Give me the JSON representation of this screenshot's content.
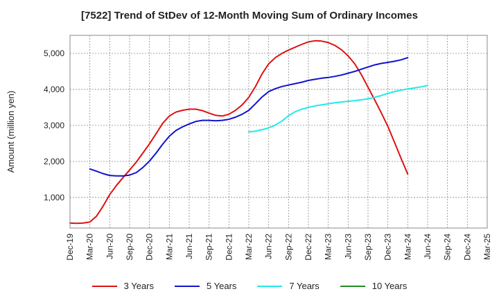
{
  "chart_data": {
    "type": "line",
    "title": "[7522]  Trend of StDev of 12-Month Moving Sum of Ordinary Incomes",
    "xlabel": "",
    "ylabel": "Amount (million yen)",
    "ylim": [
      150,
      5500
    ],
    "yticks": [
      1000,
      2000,
      3000,
      4000,
      5000
    ],
    "ytick_labels": [
      "1,000",
      "2,000",
      "3,000",
      "4,000",
      "5,000"
    ],
    "x_tick_labels": [
      "Dec-19",
      "Mar-20",
      "Jun-20",
      "Sep-20",
      "Dec-20",
      "Mar-21",
      "Jun-21",
      "Sep-21",
      "Dec-21",
      "Mar-22",
      "Jun-22",
      "Sep-22",
      "Dec-22",
      "Mar-23",
      "Jun-23",
      "Sep-23",
      "Dec-23",
      "Mar-24",
      "Jun-24",
      "Sep-24",
      "Dec-24",
      "Mar-25"
    ],
    "grid": true,
    "legend_position": "bottom",
    "series": [
      {
        "name": "3 Years",
        "color": "#dd1111",
        "start_index": 0,
        "values": [
          290,
          280,
          290,
          320,
          480,
          760,
          1080,
          1330,
          1550,
          1760,
          1980,
          2230,
          2490,
          2770,
          3060,
          3260,
          3370,
          3420,
          3450,
          3450,
          3410,
          3340,
          3280,
          3260,
          3310,
          3420,
          3570,
          3780,
          4080,
          4430,
          4710,
          4880,
          5000,
          5090,
          5170,
          5250,
          5320,
          5350,
          5340,
          5300,
          5220,
          5100,
          4930,
          4710,
          4410,
          4060,
          3710,
          3350,
          2970,
          2530,
          2080,
          1650
        ]
      },
      {
        "name": "5 Years",
        "color": "#1111cc",
        "start_index": 3,
        "values": [
          1790,
          1730,
          1660,
          1610,
          1600,
          1600,
          1620,
          1690,
          1830,
          2010,
          2230,
          2480,
          2700,
          2860,
          2960,
          3040,
          3110,
          3140,
          3140,
          3130,
          3140,
          3170,
          3230,
          3310,
          3420,
          3600,
          3790,
          3940,
          4020,
          4080,
          4120,
          4160,
          4200,
          4250,
          4280,
          4310,
          4330,
          4360,
          4400,
          4450,
          4500,
          4560,
          4620,
          4680,
          4720,
          4750,
          4780,
          4820,
          4880
        ]
      },
      {
        "name": "7 Years",
        "color": "#22e8e8",
        "start_index": 27,
        "values": [
          2820,
          2840,
          2880,
          2930,
          3010,
          3120,
          3270,
          3380,
          3450,
          3500,
          3540,
          3570,
          3600,
          3630,
          3650,
          3670,
          3690,
          3710,
          3740,
          3780,
          3830,
          3890,
          3940,
          3980,
          4010,
          4040,
          4070,
          4110
        ]
      },
      {
        "name": "10 Years",
        "color": "#228b22",
        "start_index": 0,
        "values": []
      }
    ]
  }
}
